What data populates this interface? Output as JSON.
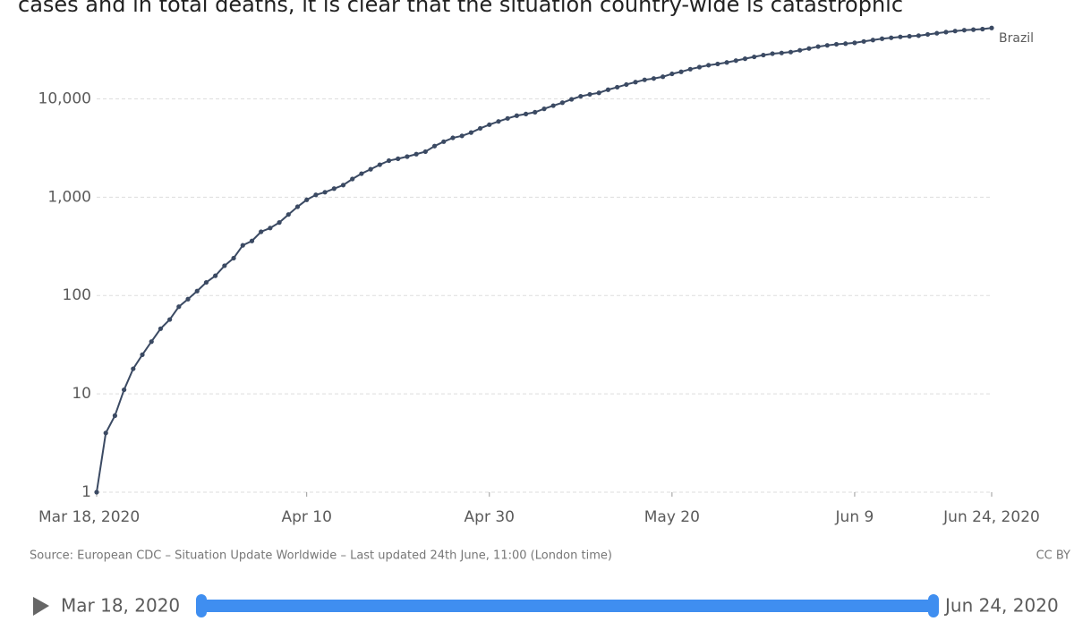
{
  "header_text": "cases and in total deaths, it is clear that the situation country-wide is catastrophic",
  "chart_data": {
    "type": "line",
    "log_scale": true,
    "grid": true,
    "x": [
      "2020-03-18",
      "2020-03-19",
      "2020-03-20",
      "2020-03-21",
      "2020-03-22",
      "2020-03-23",
      "2020-03-24",
      "2020-03-25",
      "2020-03-26",
      "2020-03-27",
      "2020-03-28",
      "2020-03-29",
      "2020-03-30",
      "2020-03-31",
      "2020-04-01",
      "2020-04-02",
      "2020-04-03",
      "2020-04-04",
      "2020-04-05",
      "2020-04-06",
      "2020-04-07",
      "2020-04-08",
      "2020-04-09",
      "2020-04-10",
      "2020-04-11",
      "2020-04-12",
      "2020-04-13",
      "2020-04-14",
      "2020-04-15",
      "2020-04-16",
      "2020-04-17",
      "2020-04-18",
      "2020-04-19",
      "2020-04-20",
      "2020-04-21",
      "2020-04-22",
      "2020-04-23",
      "2020-04-24",
      "2020-04-25",
      "2020-04-26",
      "2020-04-27",
      "2020-04-28",
      "2020-04-29",
      "2020-04-30",
      "2020-05-01",
      "2020-05-02",
      "2020-05-03",
      "2020-05-04",
      "2020-05-05",
      "2020-05-06",
      "2020-05-07",
      "2020-05-08",
      "2020-05-09",
      "2020-05-10",
      "2020-05-11",
      "2020-05-12",
      "2020-05-13",
      "2020-05-14",
      "2020-05-15",
      "2020-05-16",
      "2020-05-17",
      "2020-05-18",
      "2020-05-19",
      "2020-05-20",
      "2020-05-21",
      "2020-05-22",
      "2020-05-23",
      "2020-05-24",
      "2020-05-25",
      "2020-05-26",
      "2020-05-27",
      "2020-05-28",
      "2020-05-29",
      "2020-05-30",
      "2020-05-31",
      "2020-06-01",
      "2020-06-02",
      "2020-06-03",
      "2020-06-04",
      "2020-06-05",
      "2020-06-06",
      "2020-06-07",
      "2020-06-08",
      "2020-06-09",
      "2020-06-10",
      "2020-06-11",
      "2020-06-12",
      "2020-06-13",
      "2020-06-14",
      "2020-06-15",
      "2020-06-16",
      "2020-06-17",
      "2020-06-18",
      "2020-06-19",
      "2020-06-20",
      "2020-06-21",
      "2020-06-22",
      "2020-06-23",
      "2020-06-24"
    ],
    "series": [
      {
        "name": "Brazil",
        "color": "#3b4a63",
        "values": [
          1,
          4,
          6,
          11,
          18,
          25,
          34,
          46,
          57,
          77,
          92,
          111,
          136,
          159,
          201,
          240,
          324,
          359,
          445,
          486,
          553,
          667,
          800,
          941,
          1056,
          1124,
          1223,
          1328,
          1532,
          1736,
          1924,
          2141,
          2354,
          2462,
          2587,
          2741,
          2906,
          3313,
          3670,
          4016,
          4205,
          4543,
          5017,
          5466,
          5901,
          6329,
          6750,
          7025,
          7321,
          7921,
          8536,
          9146,
          9897,
          10627,
          11123,
          11519,
          12400,
          13149,
          13993,
          14817,
          15633,
          16118,
          16792,
          17971,
          18859,
          20047,
          21048,
          22013,
          22666,
          23473,
          24512,
          25598,
          26754,
          27878,
          28834,
          29314,
          29937,
          31199,
          32548,
          34021,
          35026,
          35930,
          36455,
          37134,
          38406,
          39680,
          40919,
          41828,
          42720,
          43332,
          43959,
          45241,
          46510,
          47748,
          48954,
          49976,
          50617,
          51271,
          52645
        ]
      }
    ],
    "xlim": [
      "2020-03-18",
      "2020-06-24"
    ],
    "xticks": [
      {
        "value": "2020-03-18",
        "label": "Mar 18, 2020"
      },
      {
        "value": "2020-04-10",
        "label": "Apr 10"
      },
      {
        "value": "2020-04-30",
        "label": "Apr 30"
      },
      {
        "value": "2020-05-20",
        "label": "May 20"
      },
      {
        "value": "2020-06-09",
        "label": "Jun 9"
      },
      {
        "value": "2020-06-24",
        "label": "Jun 24, 2020"
      }
    ],
    "ylim": [
      1,
      60000
    ],
    "yticks": [
      1,
      10,
      100,
      {
        "value": 1000,
        "label": "1,000"
      },
      {
        "value": 10000,
        "label": "10,000"
      }
    ],
    "source": "Source: European CDC – Situation Update Worldwide – Last updated 24th June, 11:00 (London time)",
    "license": "CC BY"
  },
  "timeline": {
    "start_label": "Mar 18, 2020",
    "end_label": "Jun 24, 2020"
  }
}
